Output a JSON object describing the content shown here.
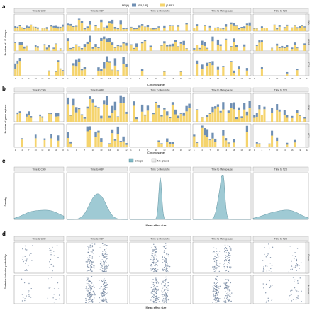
{
  "colors": {
    "lowPPI": "#6f8fb3",
    "highPPI": "#f5d46d",
    "strip": "#ececec",
    "densityFill": "#7fb8c5",
    "densityLine": "#4a8190",
    "point": "#6f829c"
  },
  "panels": {
    "a": {
      "letter": "a"
    },
    "b": {
      "letter": "b"
    },
    "c": {
      "letter": "c"
    },
    "d": {
      "letter": "d"
    }
  },
  "traits": [
    "Time to CAD",
    "Time to HBP",
    "Time to Menarche",
    "Time to Menopause",
    "Time to T2D"
  ],
  "legend_ab": {
    "title": "PPI(k)",
    "items": [
      {
        "label": "(0.5,0.95]",
        "color_key": "lowPPI"
      },
      {
        "label": "(0.95,1]",
        "color_key": "highPPI"
      }
    ]
  },
  "legend_c": {
    "items": [
      {
        "label": "Groups",
        "color_key": "densityFill"
      },
      {
        "label": "No groups",
        "color_key": "strip"
      }
    ]
  },
  "panel_a": {
    "ylabel": "Number of LD clumps",
    "xlabel": "Chromosome",
    "row_labels": [
      "SNPs",
      "GENE",
      "CCS"
    ],
    "x_ticks": [
      "1",
      "4",
      "7",
      "10",
      "13",
      "16",
      "19",
      "22"
    ]
  },
  "panel_b": {
    "ylabel": "Number of gene regions",
    "xlabel": "Chromosome",
    "row_labels": [
      "GENE",
      "CCS"
    ],
    "x_ticks": [
      "1",
      "4",
      "7",
      "10",
      "13",
      "16",
      "19",
      "22"
    ]
  },
  "panel_c": {
    "ylabel": "Density",
    "xlabel": "Mean effect size"
  },
  "panel_d": {
    "ylabel": "Posterior inclusion probability",
    "xlabel": "Mean effect size",
    "row_labels": [
      "Groups",
      "No groups"
    ]
  }
}
